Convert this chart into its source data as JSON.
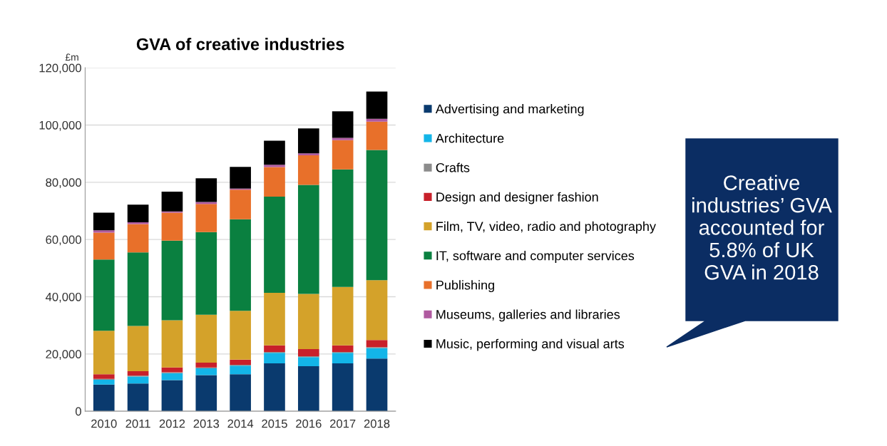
{
  "chart_data": {
    "type": "bar",
    "stacked": true,
    "title": "GVA of creative industries",
    "ylabel": "£m",
    "categories": [
      "2010",
      "2011",
      "2012",
      "2013",
      "2014",
      "2015",
      "2016",
      "2017",
      "2018"
    ],
    "ylim": [
      0,
      120000
    ],
    "yticks": [
      {
        "value": 0,
        "label": "0"
      },
      {
        "value": 20000,
        "label": "20,000"
      },
      {
        "value": 40000,
        "label": "40,000"
      },
      {
        "value": 60000,
        "label": "60,000"
      },
      {
        "value": 80000,
        "label": "80,000"
      },
      {
        "value": 100000,
        "label": "100,000"
      },
      {
        "value": 120000,
        "label": "120,000"
      }
    ],
    "grid": "y",
    "legend": "right",
    "series": [
      {
        "name": "Advertising and marketing",
        "color": "#0a3a6e",
        "values": [
          9300,
          9700,
          10900,
          12600,
          12900,
          16700,
          15700,
          16700,
          18400
        ]
      },
      {
        "name": "Architecture",
        "color": "#13b5e8",
        "values": [
          1700,
          2400,
          2400,
          2400,
          3000,
          3700,
          3200,
          3700,
          3700
        ]
      },
      {
        "name": "Crafts",
        "color": "#8c8c8c",
        "values": [
          300,
          300,
          300,
          300,
          300,
          300,
          300,
          300,
          300
        ]
      },
      {
        "name": "Design and designer fashion",
        "color": "#c8202a",
        "values": [
          1600,
          1600,
          1700,
          1700,
          1800,
          2300,
          2500,
          2300,
          2500
        ]
      },
      {
        "name": "Film, TV, video, radio and photography",
        "color": "#d4a22a",
        "values": [
          15200,
          15800,
          16500,
          16700,
          17100,
          18400,
          19300,
          20400,
          20900
        ]
      },
      {
        "name": "IT, software and computer services",
        "color": "#0a8040",
        "values": [
          24900,
          25700,
          27800,
          28900,
          32000,
          33600,
          38100,
          41100,
          45500
        ]
      },
      {
        "name": "Publishing",
        "color": "#e8702a",
        "values": [
          9400,
          9900,
          9800,
          9800,
          10300,
          10300,
          10300,
          10200,
          9900
        ]
      },
      {
        "name": "Museums, galleries and libraries",
        "color": "#b05aa0",
        "values": [
          800,
          600,
          400,
          700,
          400,
          800,
          700,
          800,
          1000
        ]
      },
      {
        "name": "Music, performing and visual arts",
        "color": "#000000",
        "values": [
          6200,
          6200,
          6900,
          8300,
          7600,
          8400,
          8700,
          9300,
          9500
        ]
      }
    ],
    "annotations": [
      "Creative\nindustries’ GVA\naccounted for\n5.8% of UK\nGVA in 2018"
    ]
  }
}
